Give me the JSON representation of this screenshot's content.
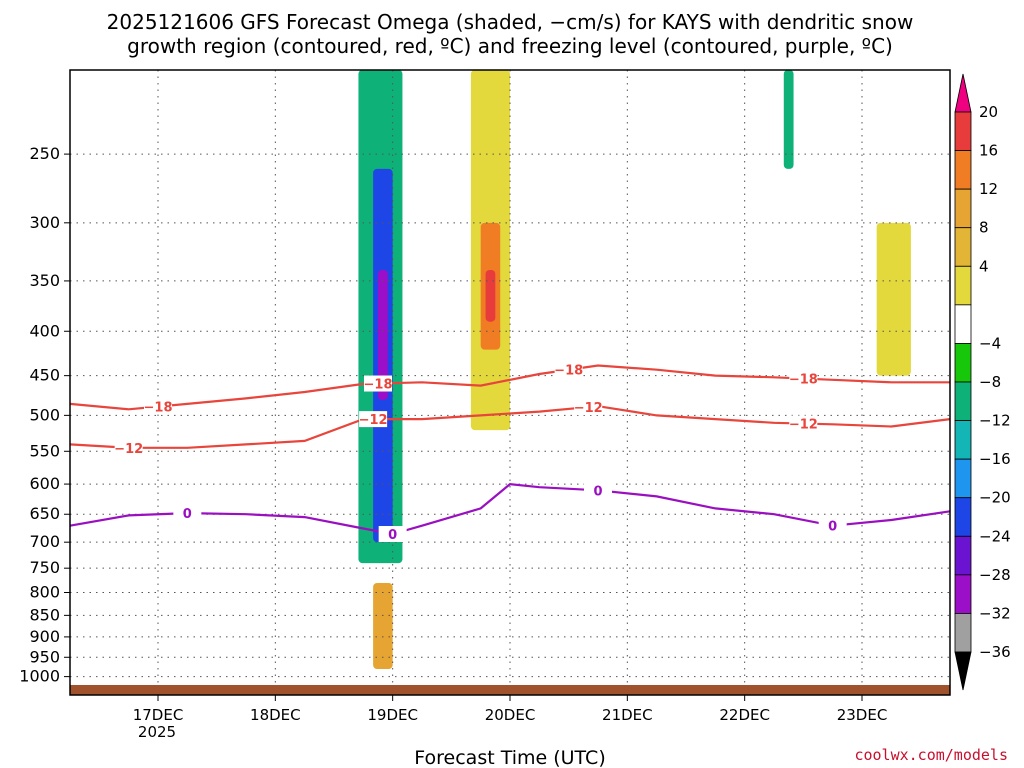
{
  "chart_data": {
    "type": "heatmap",
    "title_line1": "2025121606 GFS Forecast Omega (shaded, −cm/s) for KAYS with dendritic snow",
    "title_line2": "growth region (contoured, red, ºC) and freezing level (contoured, purple, ºC)",
    "xlabel": "Forecast Time (UTC)",
    "credit": "coolwx.com/models",
    "x_axis": {
      "start": "2025-12-16 06Z",
      "end": "2025-12-23 18Z",
      "tick_labels": [
        "17DEC",
        "18DEC",
        "19DEC",
        "20DEC",
        "21DEC",
        "22DEC",
        "23DEC"
      ],
      "tick_dates": [
        "2025-12-17 00Z",
        "2025-12-18 00Z",
        "2025-12-19 00Z",
        "2025-12-20 00Z",
        "2025-12-21 00Z",
        "2025-12-22 00Z",
        "2025-12-23 00Z"
      ],
      "year_label": "2025",
      "grid": "dotted"
    },
    "y_axis": {
      "units": "hPa",
      "scale": "log-pressure",
      "top": 200,
      "bottom": 1050,
      "tick_labels": [
        "250",
        "300",
        "350",
        "400",
        "450",
        "500",
        "550",
        "600",
        "650",
        "700",
        "750",
        "800",
        "850",
        "900",
        "950",
        "1000"
      ],
      "grid": "dotted"
    },
    "colorbar": {
      "labels": [
        "20",
        "16",
        "12",
        "8",
        "4",
        "−4",
        "−8",
        "−12",
        "−16",
        "−20",
        "−24",
        "−28",
        "−32",
        "−36"
      ],
      "colors": [
        "#ee0080",
        "#e83c3c",
        "#f07d24",
        "#e6a532",
        "#e3b537",
        "#e3d83c",
        "#ffffff",
        "#17c80a",
        "#0eb278",
        "#13b5b5",
        "#1e96f0",
        "#1e46e6",
        "#6a14d2",
        "#9b0fc8",
        "#a0a0a0",
        "#000000"
      ]
    },
    "omega_regions": [
      {
        "t0": "2025-12-18 17Z",
        "t1": "2025-12-19 02Z",
        "p_top": 200,
        "p_bottom": 740,
        "value": -10
      },
      {
        "t0": "2025-12-18 20Z",
        "t1": "2025-12-19 00Z",
        "p_top": 260,
        "p_bottom": 700,
        "value": -20
      },
      {
        "t0": "2025-12-18 21Z",
        "t1": "2025-12-18 23Z",
        "p_top": 340,
        "p_bottom": 480,
        "value": -28
      },
      {
        "t0": "2025-12-19 16Z",
        "t1": "2025-12-20 00Z",
        "p_top": 200,
        "p_bottom": 520,
        "value": 6
      },
      {
        "t0": "2025-12-19 18Z",
        "t1": "2025-12-19 22Z",
        "p_top": 300,
        "p_bottom": 420,
        "value": 12
      },
      {
        "t0": "2025-12-19 19Z",
        "t1": "2025-12-19 21Z",
        "p_top": 340,
        "p_bottom": 390,
        "value": 18
      },
      {
        "t0": "2025-12-18 20Z",
        "t1": "2025-12-18 24Z",
        "p_top": 780,
        "p_bottom": 980,
        "value": 8
      },
      {
        "t0": "2025-12-23 03Z",
        "t1": "2025-12-23 10Z",
        "p_top": 300,
        "p_bottom": 450,
        "value": 5
      },
      {
        "t0": "2025-12-22 08Z",
        "t1": "2025-12-22 10Z",
        "p_top": 200,
        "p_bottom": 260,
        "value": -8
      }
    ],
    "dgz_top_line": {
      "label": "−18",
      "label_positions": [
        "2025-12-17 00Z",
        "2025-12-18 21Z",
        "2025-12-20 12Z",
        "2025-12-22 12Z"
      ],
      "t": [
        "2025-12-16 06Z",
        "2025-12-16 18Z",
        "2025-12-17 06Z",
        "2025-12-17 18Z",
        "2025-12-18 06Z",
        "2025-12-18 18Z",
        "2025-12-19 06Z",
        "2025-12-19 18Z",
        "2025-12-20 06Z",
        "2025-12-20 18Z",
        "2025-12-21 06Z",
        "2025-12-21 18Z",
        "2025-12-22 06Z",
        "2025-12-22 18Z",
        "2025-12-23 06Z",
        "2025-12-23 18Z"
      ],
      "p": [
        485,
        492,
        485,
        478,
        470,
        460,
        458,
        462,
        448,
        438,
        443,
        450,
        452,
        455,
        458,
        458
      ]
    },
    "dgz_bottom_line": {
      "label": "−12",
      "label_positions": [
        "2025-12-16 18Z",
        "2025-12-18 20Z",
        "2025-12-20 16Z",
        "2025-12-22 12Z"
      ],
      "t": [
        "2025-12-16 06Z",
        "2025-12-16 18Z",
        "2025-12-17 06Z",
        "2025-12-17 18Z",
        "2025-12-18 06Z",
        "2025-12-18 18Z",
        "2025-12-19 06Z",
        "2025-12-19 18Z",
        "2025-12-20 06Z",
        "2025-12-20 18Z",
        "2025-12-21 06Z",
        "2025-12-21 18Z",
        "2025-12-22 06Z",
        "2025-12-22 18Z",
        "2025-12-23 06Z",
        "2025-12-23 18Z"
      ],
      "p": [
        540,
        545,
        545,
        540,
        535,
        505,
        505,
        500,
        495,
        488,
        500,
        505,
        510,
        512,
        515,
        505
      ]
    },
    "freezing_line": {
      "label": "0",
      "label_positions": [
        "2025-12-17 06Z",
        "2025-12-19 00Z",
        "2025-12-20 18Z",
        "2025-12-22 18Z"
      ],
      "t": [
        "2025-12-16 06Z",
        "2025-12-16 18Z",
        "2025-12-17 06Z",
        "2025-12-17 18Z",
        "2025-12-18 06Z",
        "2025-12-18 18Z",
        "2025-12-19 00Z",
        "2025-12-19 06Z",
        "2025-12-19 18Z",
        "2025-12-20 00Z",
        "2025-12-20 06Z",
        "2025-12-20 18Z",
        "2025-12-21 06Z",
        "2025-12-21 18Z",
        "2025-12-22 06Z",
        "2025-12-22 18Z",
        "2025-12-23 06Z",
        "2025-12-23 18Z"
      ],
      "p": [
        670,
        652,
        648,
        650,
        655,
        675,
        685,
        670,
        640,
        600,
        605,
        610,
        620,
        640,
        650,
        670,
        660,
        645
      ]
    },
    "terrain_top_hPa": 1020
  }
}
